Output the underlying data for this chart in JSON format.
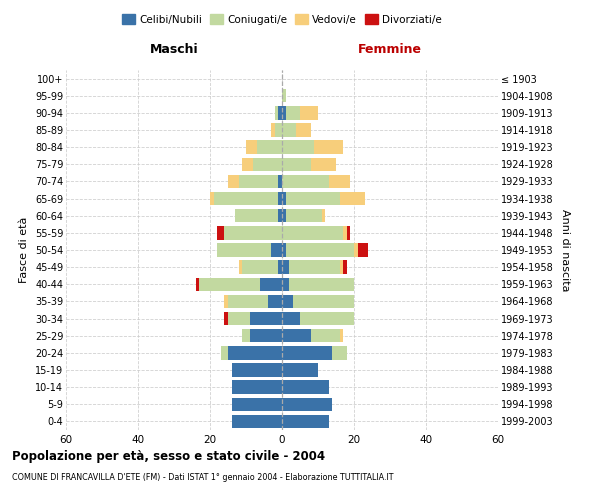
{
  "age_groups": [
    "0-4",
    "5-9",
    "10-14",
    "15-19",
    "20-24",
    "25-29",
    "30-34",
    "35-39",
    "40-44",
    "45-49",
    "50-54",
    "55-59",
    "60-64",
    "65-69",
    "70-74",
    "75-79",
    "80-84",
    "85-89",
    "90-94",
    "95-99",
    "100+"
  ],
  "birth_years": [
    "1999-2003",
    "1994-1998",
    "1989-1993",
    "1984-1988",
    "1979-1983",
    "1974-1978",
    "1969-1973",
    "1964-1968",
    "1959-1963",
    "1954-1958",
    "1949-1953",
    "1944-1948",
    "1939-1943",
    "1934-1938",
    "1929-1933",
    "1924-1928",
    "1919-1923",
    "1914-1918",
    "1909-1913",
    "1904-1908",
    "≤ 1903"
  ],
  "colors": {
    "celibi": "#3A72A8",
    "coniugati": "#C2D9A0",
    "vedovi": "#F7CE7B",
    "divorziati": "#CC1111"
  },
  "males": {
    "celibi": [
      14,
      14,
      14,
      14,
      15,
      9,
      9,
      4,
      6,
      1,
      3,
      0,
      1,
      1,
      1,
      0,
      0,
      0,
      1,
      0,
      0
    ],
    "coniugati": [
      0,
      0,
      0,
      0,
      2,
      2,
      6,
      11,
      17,
      10,
      15,
      16,
      12,
      18,
      11,
      8,
      7,
      2,
      1,
      0,
      0
    ],
    "vedovi": [
      0,
      0,
      0,
      0,
      0,
      0,
      0,
      1,
      0,
      1,
      0,
      0,
      0,
      1,
      3,
      3,
      3,
      1,
      0,
      0,
      0
    ],
    "divorziati": [
      0,
      0,
      0,
      0,
      0,
      0,
      1,
      0,
      1,
      0,
      0,
      2,
      0,
      0,
      0,
      0,
      0,
      0,
      0,
      0,
      0
    ]
  },
  "females": {
    "celibi": [
      13,
      14,
      13,
      10,
      14,
      8,
      5,
      3,
      2,
      2,
      1,
      0,
      1,
      1,
      0,
      0,
      0,
      0,
      1,
      0,
      0
    ],
    "coniugati": [
      0,
      0,
      0,
      0,
      4,
      8,
      15,
      17,
      18,
      14,
      19,
      17,
      10,
      15,
      13,
      8,
      9,
      4,
      4,
      1,
      0
    ],
    "vedovi": [
      0,
      0,
      0,
      0,
      0,
      1,
      0,
      0,
      0,
      1,
      1,
      1,
      1,
      7,
      6,
      7,
      8,
      4,
      5,
      0,
      0
    ],
    "divorziati": [
      0,
      0,
      0,
      0,
      0,
      0,
      0,
      0,
      0,
      1,
      3,
      1,
      0,
      0,
      0,
      0,
      0,
      0,
      0,
      0,
      0
    ]
  },
  "xlim": 60,
  "title": "Popolazione per età, sesso e stato civile - 2004",
  "subtitle": "COMUNE DI FRANCAVILLA D'ETE (FM) - Dati ISTAT 1° gennaio 2004 - Elaborazione TUTTITALIA.IT",
  "ylabel_left": "Fasce di età",
  "ylabel_right": "Anni di nascita",
  "xlabel_left": "Maschi",
  "xlabel_right": "Femmine",
  "legend_labels": [
    "Celibi/Nubili",
    "Coniugati/e",
    "Vedovi/e",
    "Divorziati/e"
  ],
  "background_color": "#ffffff",
  "grid_color": "#cccccc"
}
